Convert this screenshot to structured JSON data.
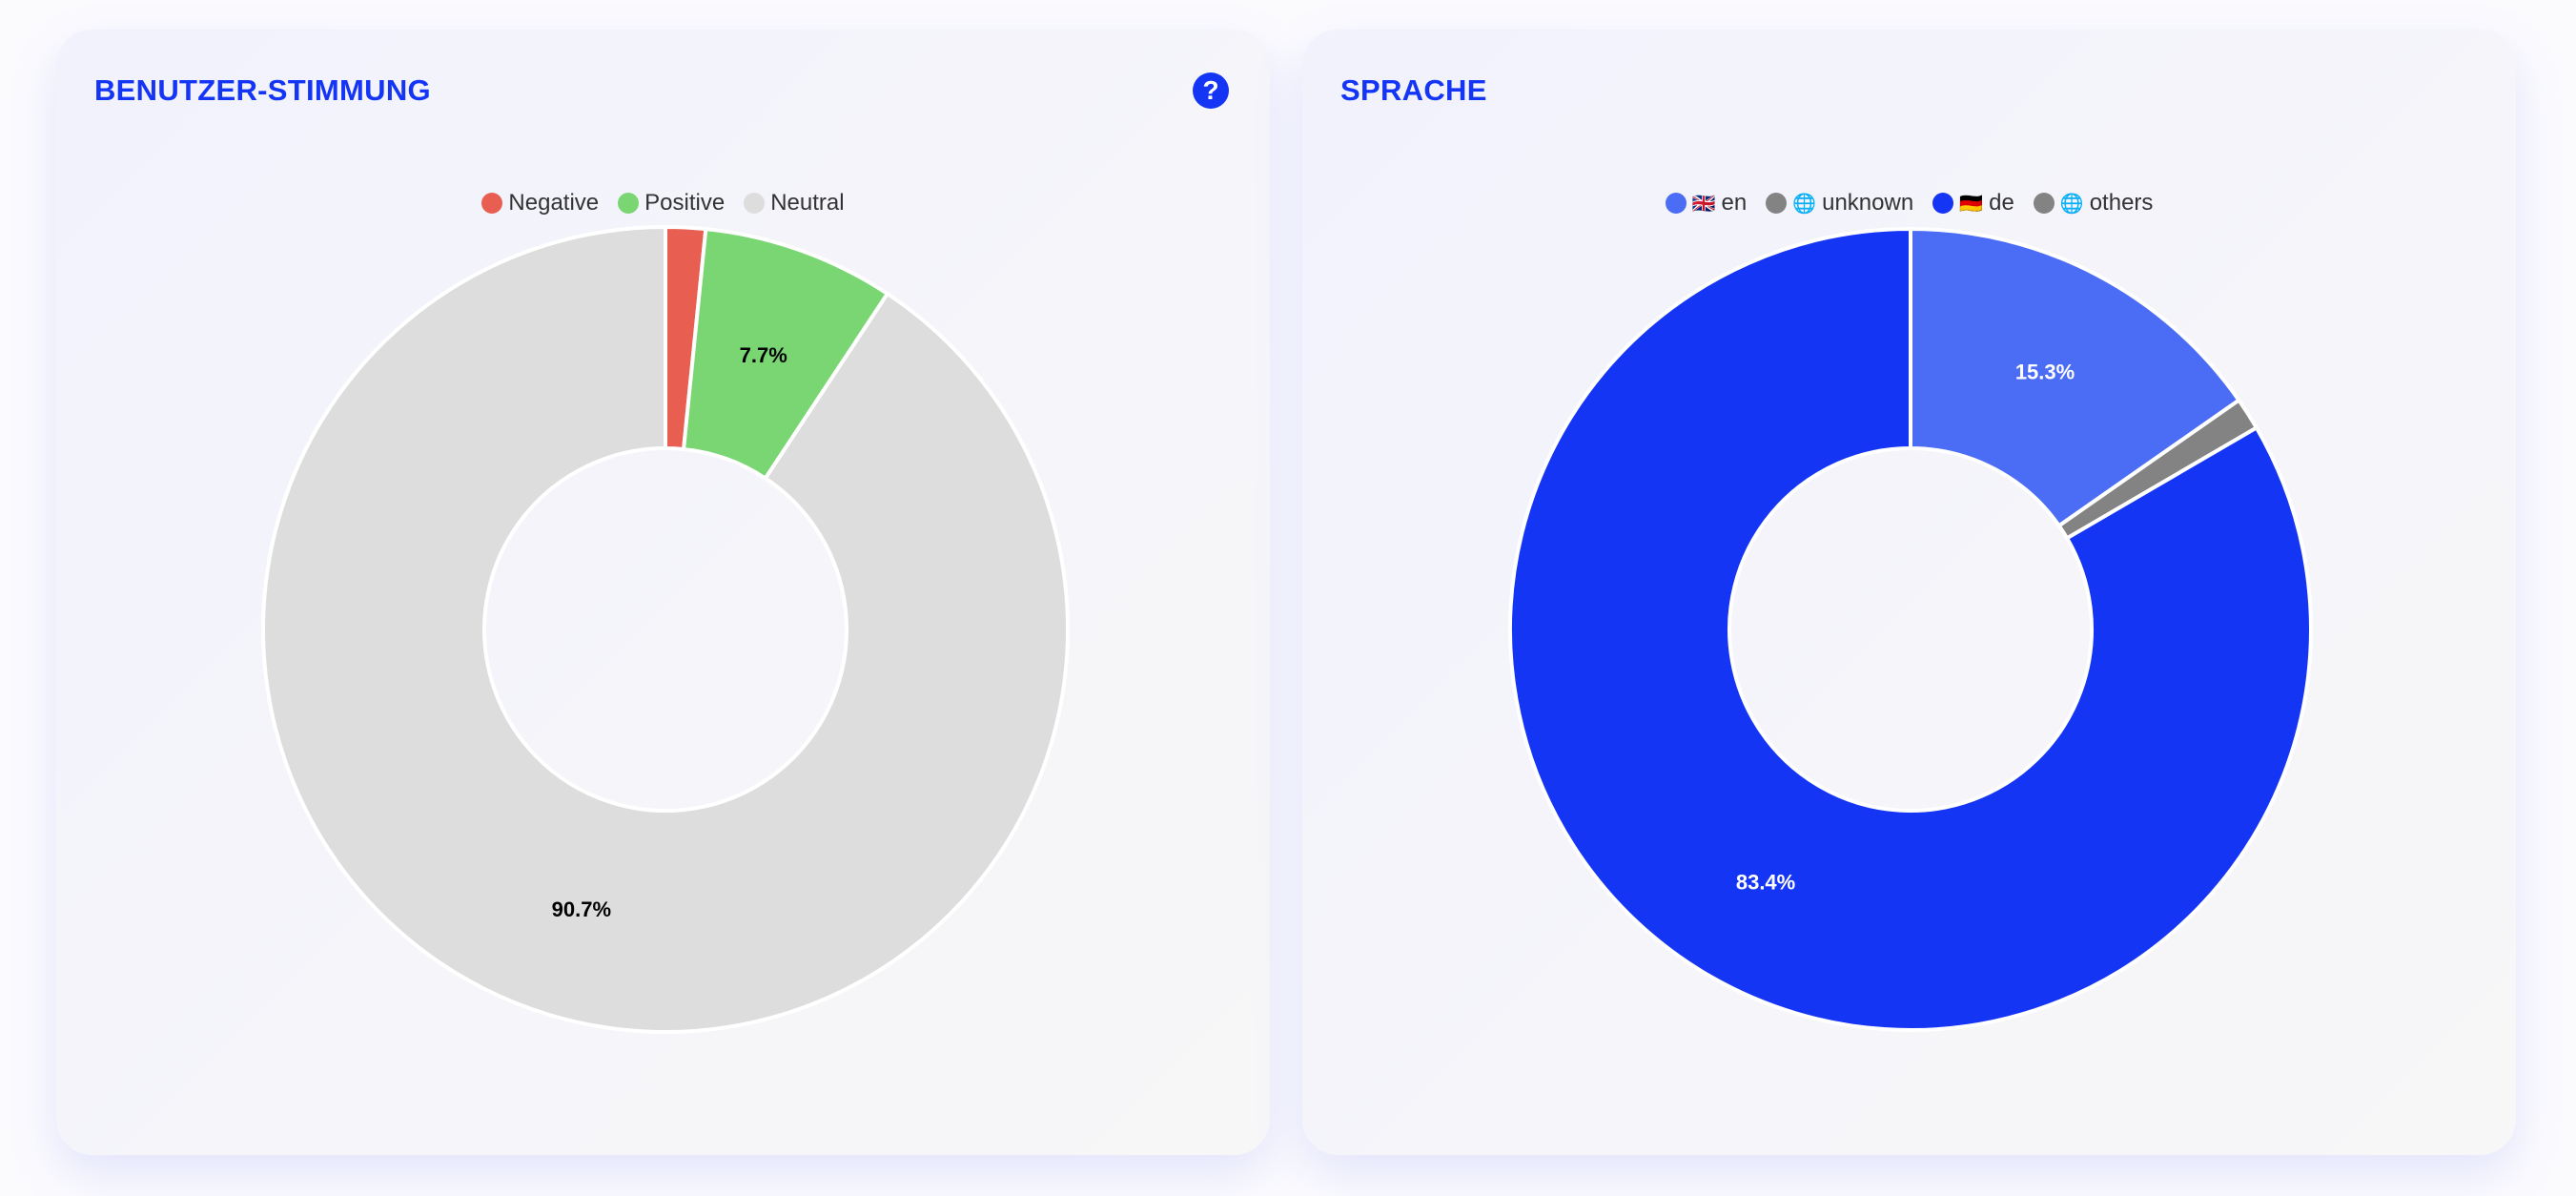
{
  "chart_data": [
    {
      "type": "pie",
      "variant": "doughnut",
      "title": "BENUTZER-STIMMUNG",
      "help_icon": "question-circle-icon",
      "legend_position": "top",
      "categories": [
        "Negative",
        "Positive",
        "Neutral"
      ],
      "values": [
        1.6,
        7.7,
        90.7
      ],
      "colors": [
        "#e85f52",
        "#79d672",
        "#dddddd"
      ],
      "data_labels": [
        "",
        "7.7%",
        "90.7%"
      ],
      "label_colors": [
        "#000000",
        "#000000",
        "#000000"
      ]
    },
    {
      "type": "pie",
      "variant": "doughnut",
      "title": "SPRACHE",
      "legend_position": "top",
      "categories": [
        "en",
        "unknown",
        "de",
        "others"
      ],
      "legend_icons": [
        "🇬🇧",
        "🌐",
        "🇩🇪",
        "🌐"
      ],
      "values": [
        15.3,
        1.3,
        83.4,
        0
      ],
      "colors": [
        "#4b6cf5",
        "#838383",
        "#1535f5",
        "#838383"
      ],
      "data_labels": [
        "15.3%",
        "",
        "83.4%",
        ""
      ],
      "label_colors": [
        "#ffffff",
        "#ffffff",
        "#ffffff",
        "#ffffff"
      ]
    }
  ]
}
